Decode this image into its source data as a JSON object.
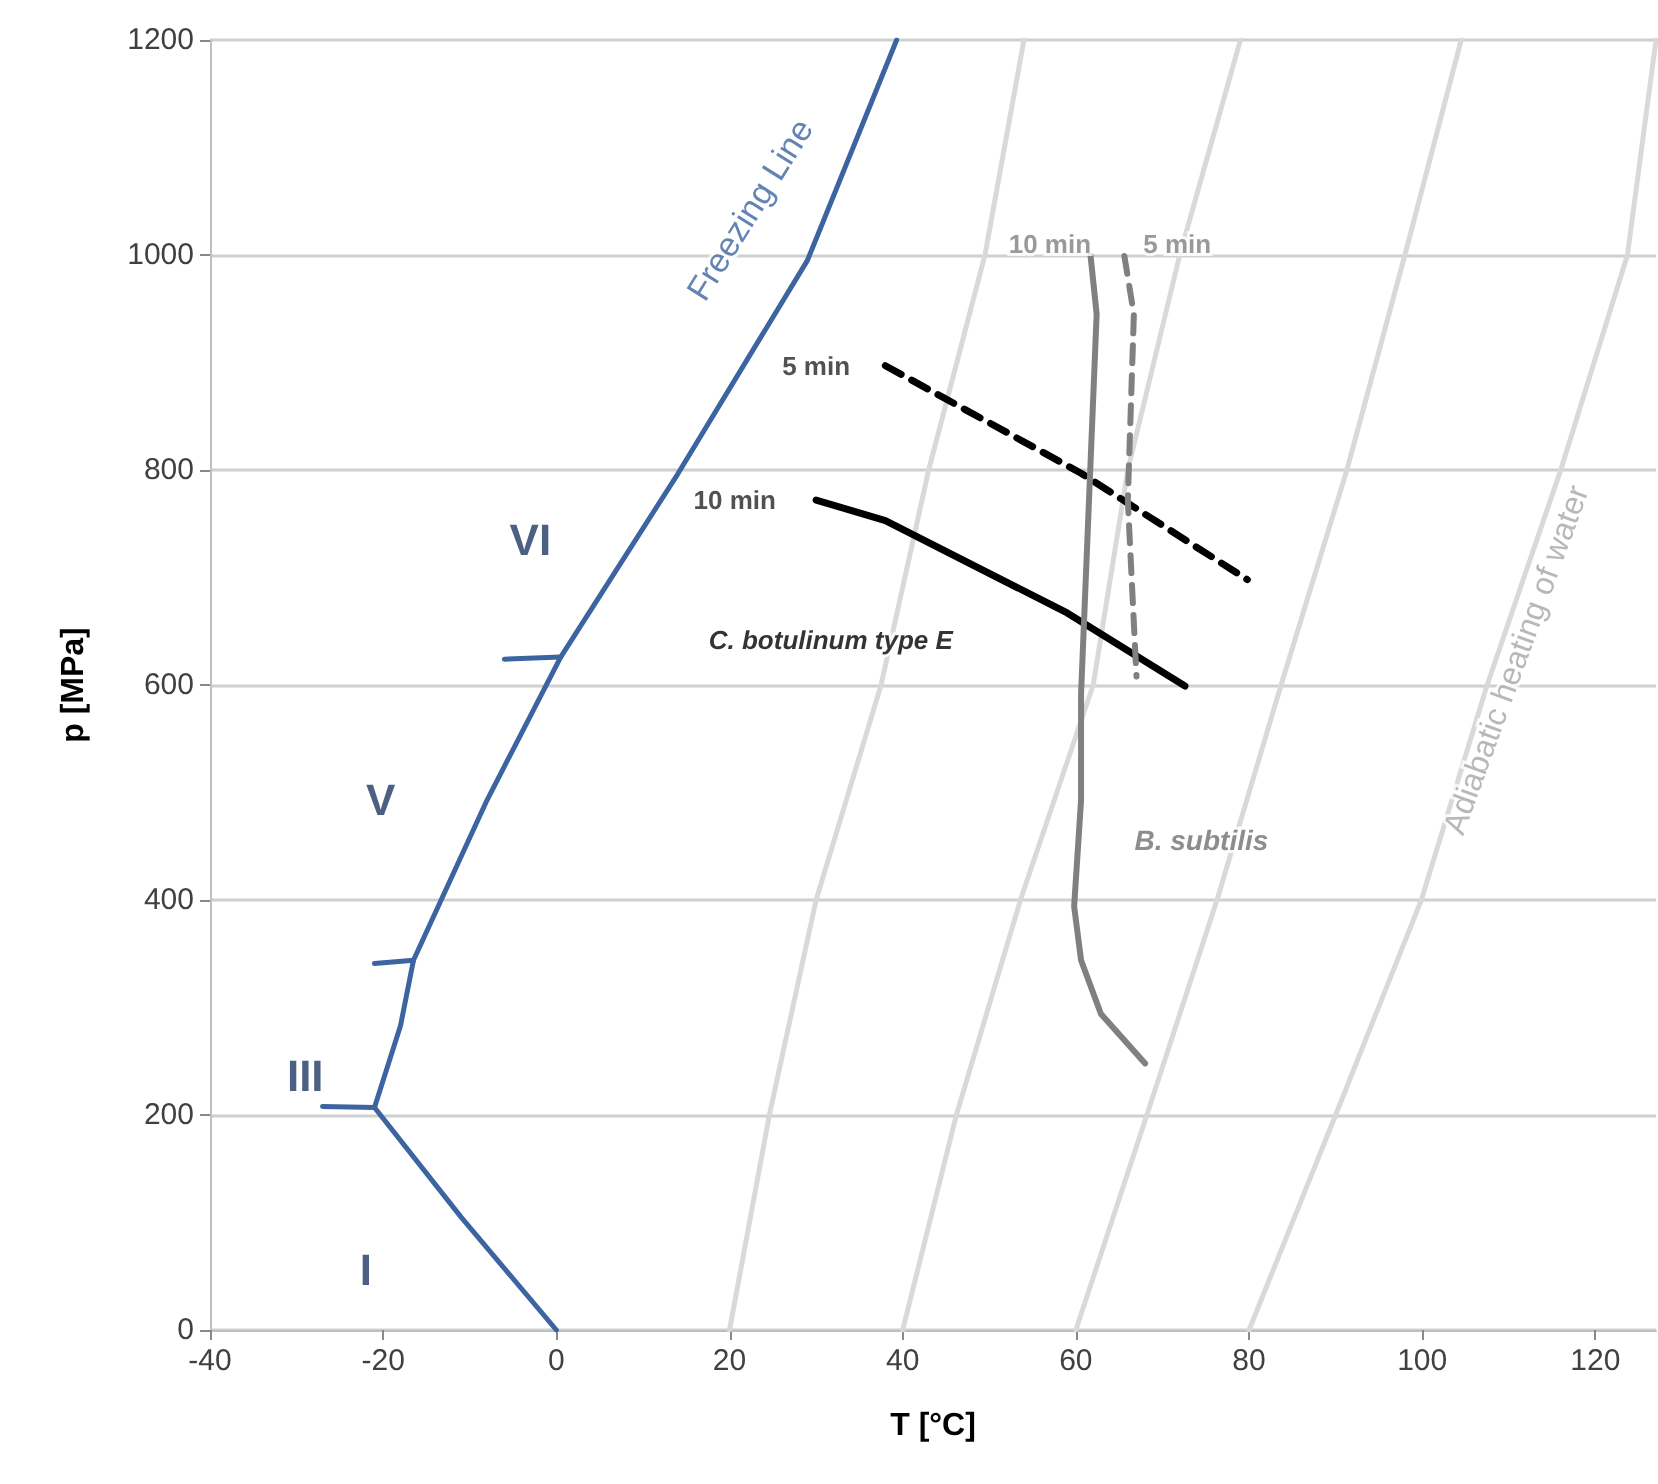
{
  "chart_data": {
    "type": "line",
    "xlabel": "T [°C]",
    "ylabel": "p [MPa]",
    "xlim": [
      -40,
      127
    ],
    "xticks": [
      -40,
      -20,
      0,
      20,
      40,
      60,
      80,
      100,
      120
    ],
    "ylim": [
      0,
      1200
    ],
    "yticks": [
      0,
      200,
      400,
      600,
      800,
      1000,
      1200
    ],
    "grid": "y",
    "marker": "none",
    "series": [
      {
        "color": "#d9d9d9",
        "x": [
          20,
          24.6,
          30,
          37.5,
          43,
          49.5,
          54
        ],
        "values": [
          0,
          200,
          400,
          600,
          800,
          1000,
          1200
        ]
      },
      {
        "color": "#d9d9d9",
        "x": [
          40,
          46.2,
          53.6,
          62,
          66,
          72,
          79
        ],
        "values": [
          0,
          200,
          400,
          600,
          800,
          1000,
          1200
        ]
      },
      {
        "color": "#d9d9d9",
        "x": [
          60,
          68.2,
          76.3,
          83.7,
          91.3,
          98,
          104.5
        ],
        "values": [
          0,
          200,
          400,
          600,
          800,
          1000,
          1200
        ]
      },
      {
        "color": "#d9d9d9",
        "x": [
          80,
          90,
          99.9,
          107.5,
          116,
          123.7,
          127
        ],
        "values": [
          0,
          200,
          400,
          600,
          800,
          1000,
          1200
        ]
      },
      {
        "color": "#3b64a0",
        "x": [
          0,
          -11,
          -21
        ],
        "values": [
          0,
          105,
          207
        ]
      },
      {
        "color": "#3b64a0",
        "x": [
          -27,
          -21
        ],
        "values": [
          208,
          207
        ]
      },
      {
        "color": "#3b64a0",
        "x": [
          -21,
          -18,
          -16.5,
          -8,
          0.5,
          14,
          29,
          39.3
        ],
        "values": [
          207,
          283,
          344,
          493,
          626,
          796,
          995,
          1200
        ]
      },
      {
        "color": "#3b64a0",
        "x": [
          -21,
          -16.5
        ],
        "values": [
          341,
          344
        ]
      },
      {
        "color": "#3b64a0",
        "x": [
          -6,
          0.5
        ],
        "values": [
          624,
          626
        ]
      },
      {
        "color": "#000000",
        "line_style": "solid",
        "x": [
          30,
          38,
          59,
          72.6
        ],
        "values": [
          772,
          753,
          667,
          599
        ]
      },
      {
        "color": "#000000",
        "line_style": "dashed",
        "x": [
          38,
          60.6,
          79.8
        ],
        "values": [
          897,
          797,
          698
        ]
      },
      {
        "color": "#808080",
        "line_style": "solid",
        "x": [
          61.7,
          62.4,
          60.6,
          60.6,
          59.8,
          60.6,
          62.9,
          68
        ],
        "values": [
          999,
          945,
          592,
          493,
          394,
          344,
          294,
          248
        ]
      },
      {
        "color": "#808080",
        "line_style": "dashed",
        "x": [
          65.6,
          66.7,
          66,
          67
        ],
        "values": [
          999,
          945,
          772,
          608
        ]
      }
    ],
    "annotations": [
      "Freezing Line",
      "VI",
      "V",
      "III",
      "I",
      "10 min",
      "5 min",
      "C. botulinum type E",
      "10 min",
      "5 min",
      "B. subtilis",
      "Adiabatic heating of water"
    ]
  }
}
